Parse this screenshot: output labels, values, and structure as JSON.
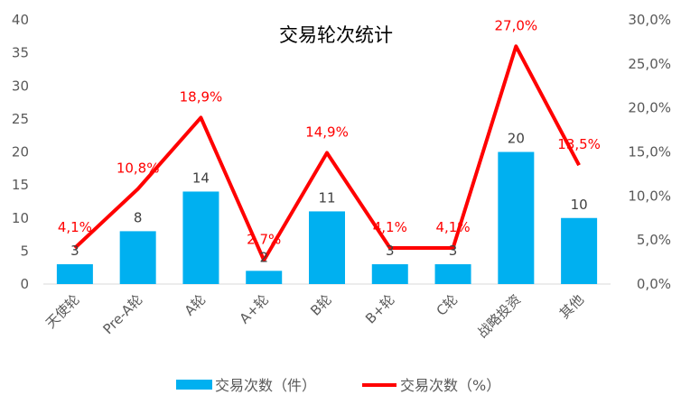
{
  "chart_data": {
    "type": "bar+line",
    "title": "交易轮次统计",
    "categories": [
      "天使轮",
      "Pre-A轮",
      "A轮",
      "A+轮",
      "B轮",
      "B+轮",
      "C轮",
      "战略投资",
      "其他"
    ],
    "series": [
      {
        "name": "交易次数（件）",
        "type": "bar",
        "axis": "left",
        "color": "#00b0f0",
        "values": [
          3,
          8,
          14,
          2,
          11,
          3,
          3,
          20,
          10
        ],
        "labels": [
          "3",
          "8",
          "14",
          "2",
          "11",
          "3",
          "3",
          "20",
          "10"
        ]
      },
      {
        "name": "交易次数（%）",
        "type": "line",
        "axis": "right",
        "color": "#ff0000",
        "values": [
          4.1,
          10.8,
          18.9,
          2.7,
          14.9,
          4.1,
          4.1,
          27.0,
          13.5
        ],
        "labels": [
          "4,1%",
          "10,8%",
          "18,9%",
          "2,7%",
          "14,9%",
          "4,1%",
          "4,1%",
          "27,0%",
          "13,5%"
        ]
      }
    ],
    "y_left": {
      "min": 0,
      "max": 40,
      "ticks": [
        "0",
        "5",
        "10",
        "15",
        "20",
        "25",
        "30",
        "35",
        "40"
      ]
    },
    "y_right": {
      "min": 0,
      "max": 30,
      "ticks": [
        "0,0%",
        "5,0%",
        "10,0%",
        "15,0%",
        "20,0%",
        "25,0%",
        "30,0%"
      ]
    },
    "grid": false,
    "legend_position": "bottom"
  },
  "legend": {
    "bar_label": "交易次数（件）",
    "line_label": "交易次数（%）"
  }
}
